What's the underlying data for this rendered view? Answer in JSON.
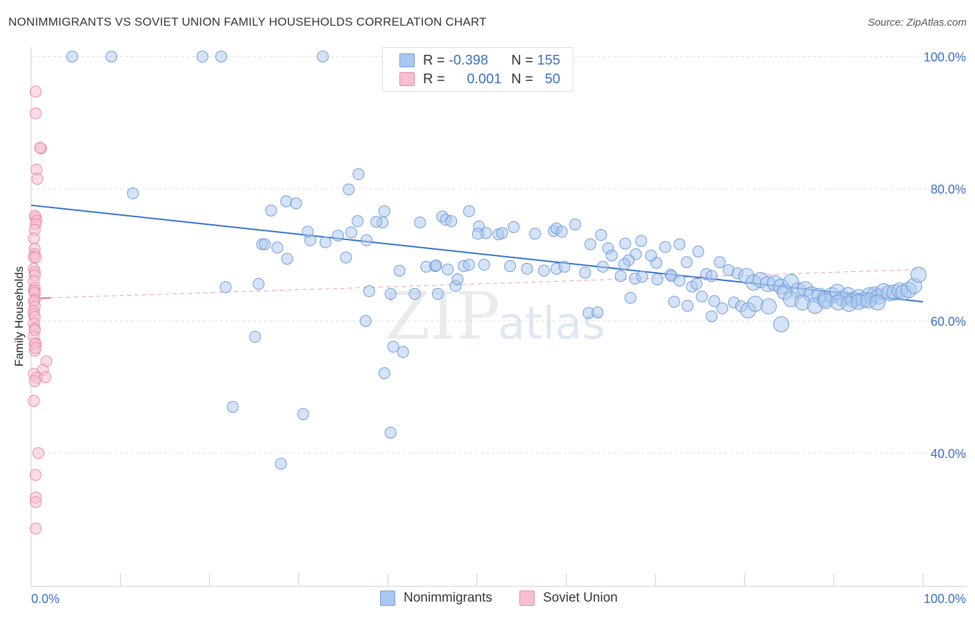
{
  "chart_data": {
    "type": "scatter",
    "title": "NONIMMIGRANTS VS SOVIET UNION FAMILY HOUSEHOLDS CORRELATION CHART",
    "source": "Source: ZipAtlas.com",
    "xlabel": "",
    "ylabel": "Family Households",
    "xlim": [
      0,
      100
    ],
    "ylim": [
      20,
      104
    ],
    "x_tick_labels": [
      "0.0%",
      "100.0%"
    ],
    "y_ticks": [
      {
        "value": 100,
        "label": "100.0%"
      },
      {
        "value": 80,
        "label": "80.0%"
      },
      {
        "value": 60,
        "label": "60.0%"
      },
      {
        "value": 40,
        "label": "40.0%"
      }
    ],
    "grid": true,
    "watermark": {
      "part1": "ZIP",
      "part2": "atlas"
    },
    "legend": [
      {
        "r_label": "R =",
        "r_value": "-0.398",
        "n_label": "N =",
        "n_value": "155"
      },
      {
        "r_label": "R =",
        "r_value": "0.001",
        "n_label": "N =",
        "n_value": "50"
      }
    ],
    "colors": {
      "blue_fill": "#a9c8f0",
      "blue_stroke": "#6f9ad8",
      "blue_line": "#2f6fcc",
      "pink_fill": "#f7bfd0",
      "pink_stroke": "#e88aa8",
      "pink_line": "#e07090",
      "accent_text": "#3a6fc4"
    },
    "series": [
      {
        "name": "Nonimmigrants",
        "trend": {
          "x0": 0,
          "y0": 77.5,
          "x1": 100,
          "y1": 62.9
        },
        "points": [
          [
            4.6,
            100.0
          ],
          [
            9.0,
            100.0
          ],
          [
            19.2,
            100.0
          ],
          [
            21.3,
            100.0
          ],
          [
            32.7,
            100.0
          ],
          [
            11.4,
            79.3
          ],
          [
            35.6,
            79.9
          ],
          [
            36.7,
            82.2
          ],
          [
            28.6,
            78.1
          ],
          [
            29.7,
            77.8
          ],
          [
            26.9,
            76.7
          ],
          [
            36.6,
            75.1
          ],
          [
            39.4,
            74.9
          ],
          [
            38.7,
            75.0
          ],
          [
            46.1,
            75.8
          ],
          [
            43.6,
            74.9
          ],
          [
            39.6,
            76.6
          ],
          [
            46.5,
            75.3
          ],
          [
            47.1,
            75.1
          ],
          [
            49.1,
            76.6
          ],
          [
            50.2,
            74.3
          ],
          [
            51.0,
            73.3
          ],
          [
            50.1,
            73.2
          ],
          [
            52.4,
            73.1
          ],
          [
            52.8,
            73.3
          ],
          [
            54.1,
            74.2
          ],
          [
            56.5,
            73.2
          ],
          [
            58.6,
            73.6
          ],
          [
            58.9,
            74.0
          ],
          [
            59.5,
            73.5
          ],
          [
            61.0,
            74.6
          ],
          [
            62.7,
            71.6
          ],
          [
            63.9,
            73.0
          ],
          [
            64.7,
            71.0
          ],
          [
            66.6,
            71.7
          ],
          [
            67.8,
            70.1
          ],
          [
            68.4,
            72.1
          ],
          [
            65.1,
            69.9
          ],
          [
            67.0,
            69.2
          ],
          [
            66.5,
            68.6
          ],
          [
            70.1,
            68.8
          ],
          [
            69.5,
            69.9
          ],
          [
            71.1,
            71.2
          ],
          [
            72.7,
            71.6
          ],
          [
            74.8,
            70.5
          ],
          [
            73.5,
            68.9
          ],
          [
            75.7,
            67.1
          ],
          [
            77.2,
            68.9
          ],
          [
            78.2,
            67.7
          ],
          [
            76.3,
            66.8
          ],
          [
            71.7,
            67.0
          ],
          [
            79.2,
            67.2
          ],
          [
            80.2,
            66.8
          ],
          [
            81.0,
            65.8
          ],
          [
            81.8,
            66.2
          ],
          [
            82.6,
            65.6
          ],
          [
            83.4,
            65.7
          ],
          [
            84.1,
            65.2
          ],
          [
            84.5,
            64.4
          ],
          [
            85.2,
            65.9
          ],
          [
            86.0,
            64.6
          ],
          [
            86.8,
            64.8
          ],
          [
            87.5,
            64.0
          ],
          [
            88.4,
            63.8
          ],
          [
            89.0,
            63.3
          ],
          [
            89.8,
            63.9
          ],
          [
            90.4,
            64.4
          ],
          [
            91.0,
            63.4
          ],
          [
            91.6,
            63.9
          ],
          [
            92.2,
            63.2
          ],
          [
            92.8,
            63.6
          ],
          [
            93.4,
            63.2
          ],
          [
            94.0,
            63.9
          ],
          [
            94.6,
            64.0
          ],
          [
            95.0,
            63.7
          ],
          [
            95.6,
            64.5
          ],
          [
            96.2,
            64.2
          ],
          [
            96.8,
            64.3
          ],
          [
            97.4,
            64.6
          ],
          [
            97.8,
            64.3
          ],
          [
            98.4,
            64.7
          ],
          [
            99.0,
            65.3
          ],
          [
            99.5,
            67.0
          ],
          [
            25.9,
            71.6
          ],
          [
            26.2,
            71.6
          ],
          [
            27.6,
            71.1
          ],
          [
            28.7,
            69.4
          ],
          [
            31.3,
            72.2
          ],
          [
            31.0,
            73.5
          ],
          [
            33.0,
            71.9
          ],
          [
            34.4,
            72.9
          ],
          [
            35.3,
            69.6
          ],
          [
            35.9,
            73.4
          ],
          [
            37.6,
            72.2
          ],
          [
            41.3,
            67.6
          ],
          [
            44.3,
            68.2
          ],
          [
            45.3,
            68.3
          ],
          [
            46.7,
            67.8
          ],
          [
            48.5,
            68.3
          ],
          [
            49.1,
            68.5
          ],
          [
            50.8,
            68.5
          ],
          [
            53.7,
            68.3
          ],
          [
            55.6,
            67.9
          ],
          [
            57.5,
            67.6
          ],
          [
            58.9,
            67.9
          ],
          [
            59.8,
            68.2
          ],
          [
            62.1,
            67.3
          ],
          [
            64.1,
            68.2
          ],
          [
            66.1,
            66.8
          ],
          [
            67.7,
            66.4
          ],
          [
            68.5,
            66.7
          ],
          [
            70.2,
            66.3
          ],
          [
            71.8,
            66.8
          ],
          [
            72.7,
            66.1
          ],
          [
            74.1,
            65.2
          ],
          [
            74.6,
            65.6
          ],
          [
            75.2,
            63.7
          ],
          [
            76.6,
            63.0
          ],
          [
            77.5,
            61.9
          ],
          [
            78.8,
            62.8
          ],
          [
            79.6,
            62.2
          ],
          [
            80.4,
            61.6
          ],
          [
            81.2,
            62.6
          ],
          [
            82.7,
            62.2
          ],
          [
            84.1,
            59.5
          ],
          [
            85.2,
            63.3
          ],
          [
            86.5,
            62.8
          ],
          [
            87.9,
            62.3
          ],
          [
            89.1,
            63.0
          ],
          [
            90.5,
            62.8
          ],
          [
            91.7,
            62.6
          ],
          [
            92.8,
            62.9
          ],
          [
            93.9,
            63.1
          ],
          [
            94.9,
            62.8
          ],
          [
            21.8,
            65.1
          ],
          [
            25.5,
            65.6
          ],
          [
            37.9,
            64.5
          ],
          [
            40.3,
            64.1
          ],
          [
            43.0,
            64.1
          ],
          [
            45.6,
            64.1
          ],
          [
            47.6,
            65.3
          ],
          [
            62.5,
            61.2
          ],
          [
            63.5,
            61.3
          ],
          [
            67.2,
            63.5
          ],
          [
            72.1,
            62.9
          ],
          [
            73.6,
            62.3
          ],
          [
            76.3,
            60.7
          ],
          [
            37.5,
            60.0
          ],
          [
            25.1,
            57.6
          ],
          [
            40.6,
            56.1
          ],
          [
            41.7,
            55.3
          ],
          [
            39.6,
            52.1
          ],
          [
            22.6,
            47.0
          ],
          [
            30.5,
            45.9
          ],
          [
            40.3,
            43.1
          ],
          [
            28.0,
            38.4
          ],
          [
            45.4,
            68.4
          ],
          [
            47.8,
            66.3
          ]
        ]
      },
      {
        "name": "Soviet Union",
        "trend": {
          "x0": 0,
          "y0": 63.4,
          "x1": 100,
          "y1": 67.8
        },
        "points": [
          [
            0.5,
            94.7
          ],
          [
            0.5,
            91.4
          ],
          [
            1.1,
            86.1
          ],
          [
            1.0,
            86.2
          ],
          [
            0.6,
            82.9
          ],
          [
            0.7,
            81.5
          ],
          [
            0.5,
            75.7
          ],
          [
            0.4,
            75.9
          ],
          [
            0.6,
            75.2
          ],
          [
            0.5,
            74.7
          ],
          [
            0.4,
            73.8
          ],
          [
            0.3,
            72.5
          ],
          [
            0.4,
            70.9
          ],
          [
            0.4,
            70.1
          ],
          [
            0.3,
            69.7
          ],
          [
            0.5,
            69.6
          ],
          [
            0.3,
            67.9
          ],
          [
            0.4,
            67.4
          ],
          [
            0.4,
            66.9
          ],
          [
            0.3,
            66.0
          ],
          [
            0.4,
            65.0
          ],
          [
            0.4,
            64.5
          ],
          [
            0.3,
            64.6
          ],
          [
            0.4,
            64.2
          ],
          [
            0.4,
            63.2
          ],
          [
            0.3,
            63.0
          ],
          [
            0.4,
            62.2
          ],
          [
            0.3,
            61.5
          ],
          [
            0.3,
            61.0
          ],
          [
            0.4,
            60.6
          ],
          [
            0.3,
            59.6
          ],
          [
            0.4,
            58.8
          ],
          [
            0.4,
            58.6
          ],
          [
            0.3,
            57.6
          ],
          [
            0.5,
            56.6
          ],
          [
            0.4,
            56.5
          ],
          [
            0.4,
            55.5
          ],
          [
            1.7,
            53.9
          ],
          [
            1.3,
            52.6
          ],
          [
            1.6,
            51.5
          ],
          [
            0.3,
            52.0
          ],
          [
            0.6,
            51.4
          ],
          [
            0.4,
            50.9
          ],
          [
            0.3,
            47.9
          ],
          [
            0.8,
            40.0
          ],
          [
            0.5,
            36.7
          ],
          [
            0.5,
            33.3
          ],
          [
            0.5,
            32.6
          ],
          [
            0.5,
            28.6
          ],
          [
            0.5,
            55.9
          ]
        ]
      }
    ]
  },
  "bottom_legend": [
    "Nonimmigrants",
    "Soviet Union"
  ]
}
